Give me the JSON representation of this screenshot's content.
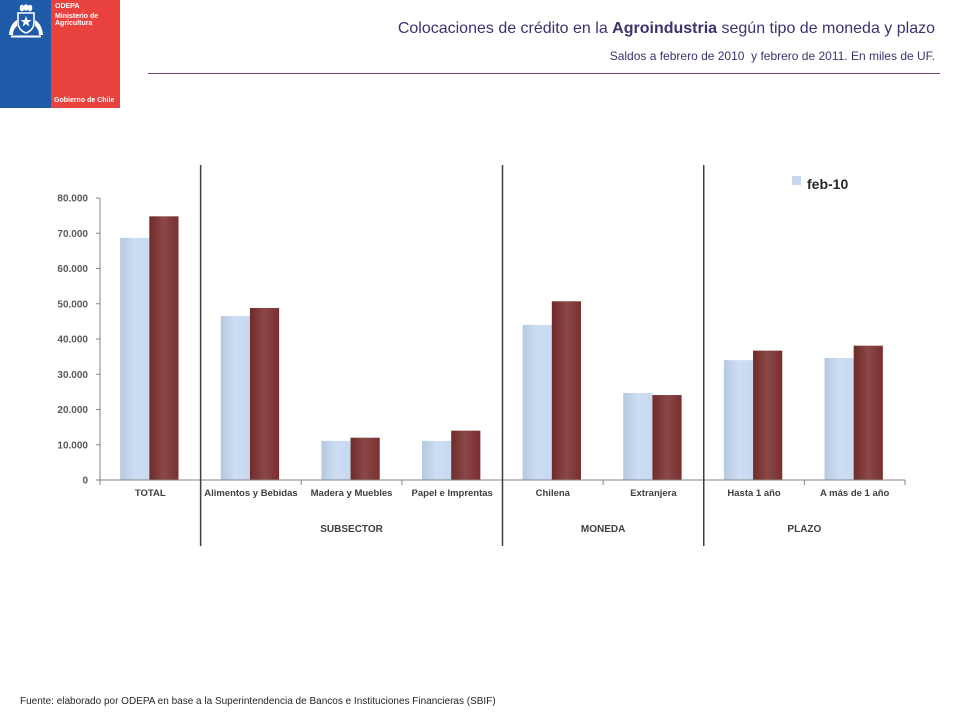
{
  "theme": {
    "brand_blue": "#1f5ba8",
    "brand_red": "#e8413e",
    "title_color": "#3b3370",
    "rule_color": "#7b3b7e"
  },
  "logo": {
    "icon": "coat-of-arms-icon",
    "org": "ODEPA",
    "ministry_line1": "Ministerio de",
    "ministry_line2": "Agricultura",
    "government": "Gobierno de Chile"
  },
  "header": {
    "title_pre": "Colocaciones de crédito en la ",
    "title_bold": "Agroindustria",
    "title_post": " según tipo de moneda y plazo",
    "subtitle": "Saldos a febrero de 2010  y febrero de 2011. En miles de UF."
  },
  "chart_data": {
    "type": "bar",
    "categories": [
      "TOTAL",
      "Alimentos y Bebidas",
      "Madera y Muebles",
      "Papel e Imprentas",
      "Chilena",
      "Extranjera",
      "Hasta 1 año",
      "A más de 1 año"
    ],
    "series": [
      {
        "name": "feb-10",
        "color": "#c6d9f1",
        "values": [
          68700,
          46500,
          11100,
          11100,
          44000,
          24700,
          34000,
          34600
        ]
      },
      {
        "color": "#7a2f2e",
        "values": [
          74800,
          48800,
          12000,
          14000,
          50700,
          24100,
          36700,
          38100
        ]
      }
    ],
    "ylim": [
      0,
      80000
    ],
    "yticks": [
      0,
      10000,
      20000,
      30000,
      40000,
      50000,
      60000,
      70000,
      80000
    ],
    "ytick_labels": [
      "0",
      "10.000",
      "20.000",
      "30.000",
      "40.000",
      "50.000",
      "60.000",
      "70.000",
      "80.000"
    ],
    "groups": [
      {
        "label": "SUBSECTOR",
        "first": 1,
        "last": 3
      },
      {
        "label": "MONEDA",
        "first": 4,
        "last": 5
      },
      {
        "label": "PLAZO",
        "first": 6,
        "last": 7
      }
    ],
    "legend": {
      "position": "top-right"
    },
    "grid": false
  },
  "footer": {
    "source": "Fuente: elaborado por ODEPA en base a la Superintendencia de Bancos e Instituciones Financieras (SBIF)"
  }
}
